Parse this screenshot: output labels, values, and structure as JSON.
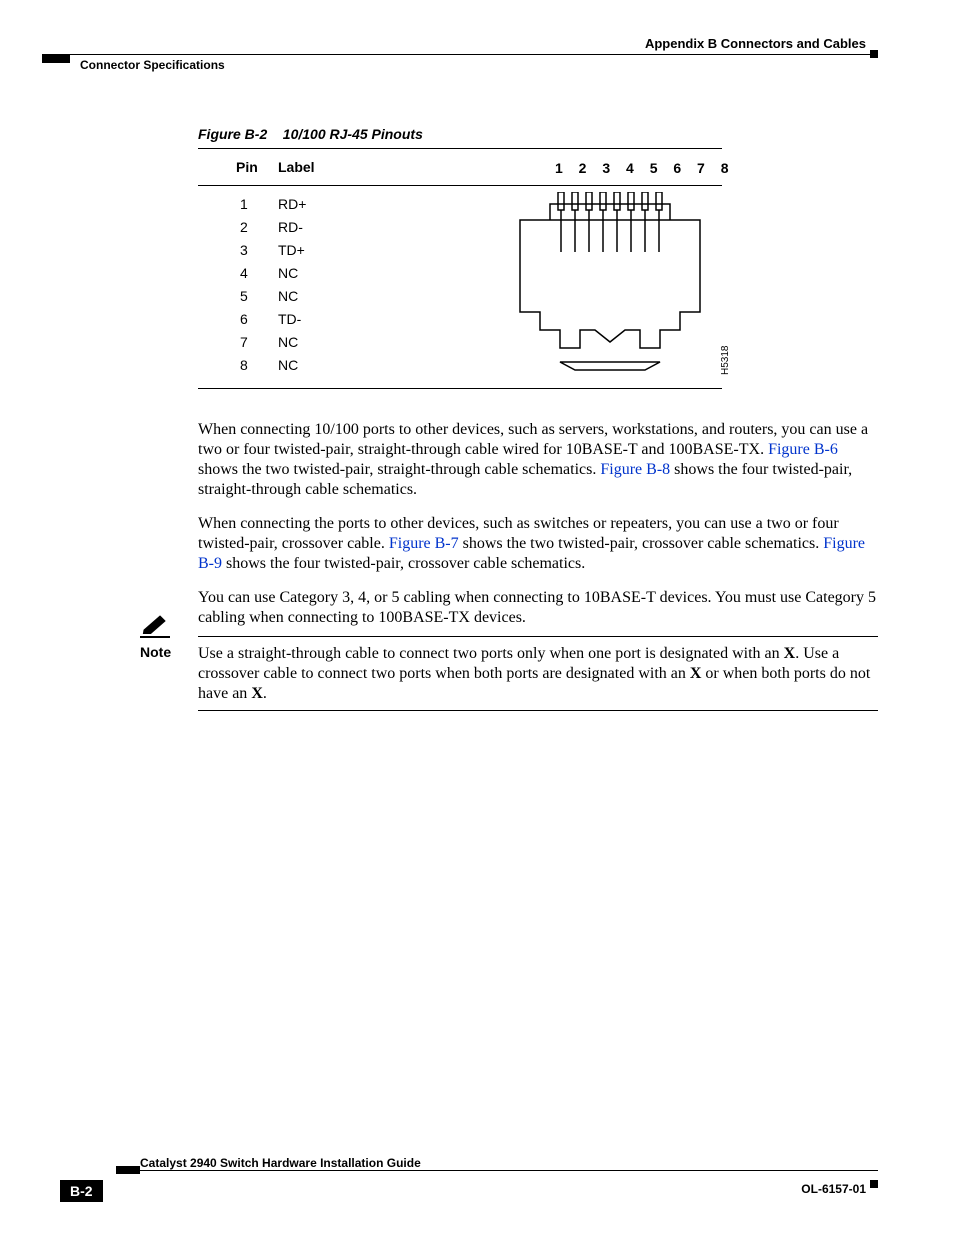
{
  "header": {
    "appendix": "Appendix B      Connectors and Cables",
    "section": "Connector Specifications"
  },
  "figure": {
    "caption_prefix": "Figure B-2",
    "caption_title": "10/100 RJ-45 Pinouts",
    "drawing_id": "H5318",
    "columns": {
      "pin": "Pin",
      "label": "Label"
    },
    "pin_numbers_header": "1 2 3 4 5 6 7 8",
    "pins": [
      {
        "pin": "1",
        "label": "RD+"
      },
      {
        "pin": "2",
        "label": "RD-"
      },
      {
        "pin": "3",
        "label": "TD+"
      },
      {
        "pin": "4",
        "label": "NC"
      },
      {
        "pin": "5",
        "label": "NC"
      },
      {
        "pin": "6",
        "label": "TD-"
      },
      {
        "pin": "7",
        "label": "NC"
      },
      {
        "pin": "8",
        "label": "NC"
      }
    ]
  },
  "body": {
    "p1_a": "When connecting 10/100 ports to other devices, such as servers, workstations, and routers, you can use a two or four twisted-pair, straight-through cable wired for 10BASE-T and 100BASE-TX. ",
    "p1_link1": "Figure B-6",
    "p1_b": " shows the two twisted-pair, straight-through cable schematics. ",
    "p1_link2": "Figure B-8",
    "p1_c": " shows the four twisted-pair, straight-through cable schematics.",
    "p2_a": "When connecting the ports to other devices, such as switches or repeaters, you can use a two or four twisted-pair, crossover cable. ",
    "p2_link1": "Figure B-7",
    "p2_b": " shows the two twisted-pair, crossover cable schematics. ",
    "p2_link2": "Figure B-9",
    "p2_c": " shows the four twisted-pair, crossover cable schematics.",
    "p3": "You can use Category 3, 4, or 5 cabling when connecting to 10BASE-T devices. You must use Category 5 cabling when connecting to 100BASE-TX devices."
  },
  "note": {
    "label": "Note",
    "t1": "Use a straight-through cable to connect two ports only when one port is designated with an ",
    "x1": "X",
    "t2": ". Use a crossover cable to connect two ports when both ports are designated with an ",
    "x2": "X",
    "t3": " or when both ports do not have an ",
    "x3": "X",
    "t4": "."
  },
  "footer": {
    "title": "Catalyst 2940 Switch Hardware Installation Guide",
    "page": "B-2",
    "ol": "OL-6157-01"
  },
  "style": {
    "link_color": "#0033cc",
    "text_color": "#000000",
    "page_bg": "#ffffff",
    "body_font_size_pt": 12,
    "body_font_family": "Times New Roman",
    "sans_font_family": "Arial"
  }
}
